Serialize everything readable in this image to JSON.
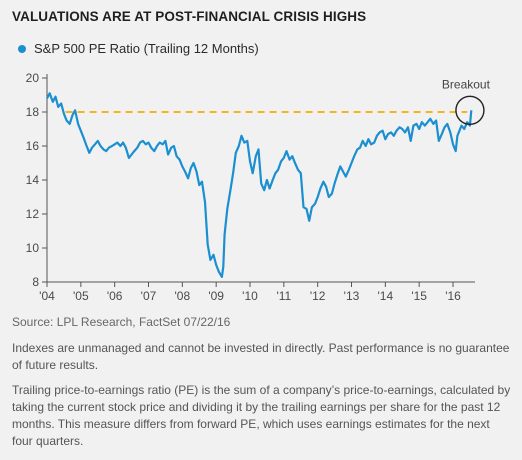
{
  "title": "VALUATIONS ARE AT POST-FINANCIAL CRISIS HIGHS",
  "source": "Source: LPL Research, FactSet   07/22/16",
  "disclaimer": "Indexes are unmanaged and cannot be invested in directly. Past performance is no guarantee of future results.",
  "definition": "Trailing price-to-earnings ratio (PE) is the sum of a company’s price-to-earnings, calculated by taking the current stock price and dividing it by the trailing earnings per share for the past 12 months. This measure differs from forward PE, which uses earnings estimates for the next four quarters.",
  "colors": {
    "series": "#1b8fcf",
    "reference_line": "#f2b51b",
    "axis": "#555555",
    "text": "#4a4a4a"
  },
  "chart_data": {
    "type": "line",
    "title": "VALUATIONS ARE AT POST-FINANCIAL CRISIS HIGHS",
    "xlabel": "",
    "ylabel": "",
    "xlim": [
      2004,
      2016.65
    ],
    "ylim": [
      8,
      20
    ],
    "x_ticks": [
      2004,
      2005,
      2006,
      2007,
      2008,
      2009,
      2010,
      2011,
      2012,
      2013,
      2014,
      2015,
      2016
    ],
    "x_tick_labels": [
      "'04",
      "'05",
      "'06",
      "'07",
      "'08",
      "'09",
      "'10",
      "'11",
      "'12",
      "'13",
      "'14",
      "'15",
      "'16"
    ],
    "y_ticks": [
      8,
      10,
      12,
      14,
      16,
      18,
      20
    ],
    "y_tick_labels": [
      "8",
      "10",
      "12",
      "14",
      "16",
      "18",
      "20"
    ],
    "grid": false,
    "legend": "top-left",
    "reference_line": {
      "y": 18.0,
      "style": "dashed"
    },
    "annotation": {
      "text": "Breakout",
      "x": 2016.5,
      "y": 18.1
    },
    "series": [
      {
        "name": "S&P 500 PE Ratio (Trailing 12 Months)",
        "points": [
          [
            2004.0,
            18.8
          ],
          [
            2004.08,
            19.1
          ],
          [
            2004.17,
            18.6
          ],
          [
            2004.25,
            18.9
          ],
          [
            2004.33,
            18.3
          ],
          [
            2004.42,
            18.5
          ],
          [
            2004.5,
            17.9
          ],
          [
            2004.58,
            17.5
          ],
          [
            2004.67,
            17.3
          ],
          [
            2004.75,
            17.8
          ],
          [
            2004.83,
            18.1
          ],
          [
            2004.92,
            17.3
          ],
          [
            2005.0,
            16.9
          ],
          [
            2005.08,
            16.5
          ],
          [
            2005.17,
            16.0
          ],
          [
            2005.25,
            15.6
          ],
          [
            2005.33,
            15.9
          ],
          [
            2005.42,
            16.1
          ],
          [
            2005.5,
            16.3
          ],
          [
            2005.58,
            16.0
          ],
          [
            2005.67,
            15.8
          ],
          [
            2005.75,
            15.7
          ],
          [
            2005.83,
            15.9
          ],
          [
            2005.92,
            16.0
          ],
          [
            2006.0,
            16.1
          ],
          [
            2006.08,
            16.2
          ],
          [
            2006.17,
            16.0
          ],
          [
            2006.25,
            16.2
          ],
          [
            2006.33,
            15.9
          ],
          [
            2006.42,
            15.3
          ],
          [
            2006.5,
            15.5
          ],
          [
            2006.58,
            15.7
          ],
          [
            2006.67,
            15.9
          ],
          [
            2006.75,
            16.2
          ],
          [
            2006.83,
            16.3
          ],
          [
            2006.92,
            16.1
          ],
          [
            2007.0,
            16.2
          ],
          [
            2007.08,
            15.9
          ],
          [
            2007.17,
            15.7
          ],
          [
            2007.25,
            16.0
          ],
          [
            2007.33,
            16.2
          ],
          [
            2007.42,
            16.1
          ],
          [
            2007.5,
            16.3
          ],
          [
            2007.58,
            15.5
          ],
          [
            2007.67,
            15.9
          ],
          [
            2007.75,
            16.0
          ],
          [
            2007.83,
            15.4
          ],
          [
            2007.92,
            15.2
          ],
          [
            2008.0,
            14.8
          ],
          [
            2008.08,
            14.5
          ],
          [
            2008.17,
            14.1
          ],
          [
            2008.25,
            14.7
          ],
          [
            2008.33,
            15.0
          ],
          [
            2008.42,
            14.5
          ],
          [
            2008.5,
            13.7
          ],
          [
            2008.58,
            13.9
          ],
          [
            2008.67,
            12.7
          ],
          [
            2008.75,
            10.2
          ],
          [
            2008.83,
            9.3
          ],
          [
            2008.92,
            9.6
          ],
          [
            2009.0,
            9.0
          ],
          [
            2009.08,
            8.6
          ],
          [
            2009.17,
            8.3
          ],
          [
            2009.21,
            8.9
          ],
          [
            2009.25,
            10.8
          ],
          [
            2009.33,
            12.3
          ],
          [
            2009.42,
            13.4
          ],
          [
            2009.5,
            14.4
          ],
          [
            2009.58,
            15.6
          ],
          [
            2009.67,
            16.0
          ],
          [
            2009.75,
            16.6
          ],
          [
            2009.83,
            16.2
          ],
          [
            2009.92,
            16.3
          ],
          [
            2010.0,
            15.1
          ],
          [
            2010.08,
            14.4
          ],
          [
            2010.17,
            15.4
          ],
          [
            2010.25,
            15.8
          ],
          [
            2010.33,
            13.8
          ],
          [
            2010.42,
            13.4
          ],
          [
            2010.5,
            14.0
          ],
          [
            2010.58,
            13.5
          ],
          [
            2010.67,
            14.0
          ],
          [
            2010.75,
            14.4
          ],
          [
            2010.83,
            14.6
          ],
          [
            2010.92,
            15.1
          ],
          [
            2011.0,
            15.3
          ],
          [
            2011.08,
            15.7
          ],
          [
            2011.17,
            15.2
          ],
          [
            2011.25,
            15.4
          ],
          [
            2011.33,
            15.0
          ],
          [
            2011.42,
            14.6
          ],
          [
            2011.5,
            14.4
          ],
          [
            2011.58,
            12.4
          ],
          [
            2011.67,
            12.3
          ],
          [
            2011.75,
            11.6
          ],
          [
            2011.83,
            12.4
          ],
          [
            2011.92,
            12.6
          ],
          [
            2012.0,
            13.0
          ],
          [
            2012.08,
            13.5
          ],
          [
            2012.17,
            13.9
          ],
          [
            2012.25,
            13.6
          ],
          [
            2012.33,
            13.0
          ],
          [
            2012.42,
            13.2
          ],
          [
            2012.5,
            13.8
          ],
          [
            2012.58,
            14.3
          ],
          [
            2012.67,
            14.8
          ],
          [
            2012.75,
            14.5
          ],
          [
            2012.83,
            14.2
          ],
          [
            2012.92,
            14.6
          ],
          [
            2013.0,
            15.0
          ],
          [
            2013.08,
            15.4
          ],
          [
            2013.17,
            15.8
          ],
          [
            2013.25,
            15.9
          ],
          [
            2013.33,
            16.3
          ],
          [
            2013.42,
            16.0
          ],
          [
            2013.5,
            16.4
          ],
          [
            2013.58,
            16.1
          ],
          [
            2013.67,
            16.2
          ],
          [
            2013.75,
            16.6
          ],
          [
            2013.83,
            16.8
          ],
          [
            2013.92,
            16.9
          ],
          [
            2014.0,
            16.4
          ],
          [
            2014.08,
            16.7
          ],
          [
            2014.17,
            16.8
          ],
          [
            2014.25,
            16.6
          ],
          [
            2014.33,
            16.9
          ],
          [
            2014.42,
            17.1
          ],
          [
            2014.5,
            17.0
          ],
          [
            2014.58,
            16.8
          ],
          [
            2014.67,
            17.1
          ],
          [
            2014.75,
            16.3
          ],
          [
            2014.83,
            17.2
          ],
          [
            2014.92,
            17.3
          ],
          [
            2015.0,
            17.0
          ],
          [
            2015.08,
            17.4
          ],
          [
            2015.17,
            17.2
          ],
          [
            2015.25,
            17.4
          ],
          [
            2015.33,
            17.6
          ],
          [
            2015.42,
            17.3
          ],
          [
            2015.5,
            17.5
          ],
          [
            2015.58,
            16.3
          ],
          [
            2015.67,
            16.7
          ],
          [
            2015.75,
            17.1
          ],
          [
            2015.83,
            17.3
          ],
          [
            2015.92,
            16.8
          ],
          [
            2016.0,
            16.1
          ],
          [
            2016.08,
            15.7
          ],
          [
            2016.13,
            16.6
          ],
          [
            2016.25,
            17.2
          ],
          [
            2016.33,
            17.0
          ],
          [
            2016.42,
            17.4
          ],
          [
            2016.5,
            17.2
          ],
          [
            2016.54,
            18.1
          ]
        ]
      }
    ]
  }
}
